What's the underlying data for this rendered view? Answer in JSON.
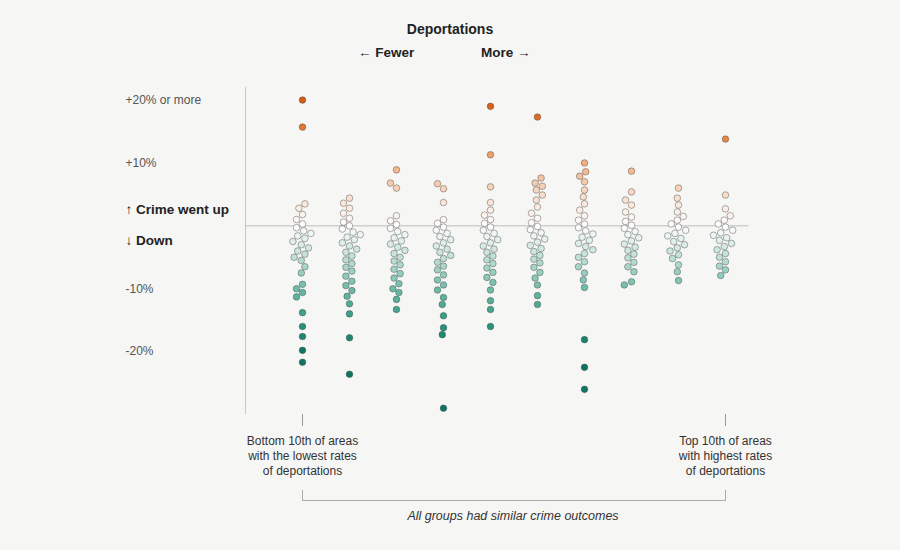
{
  "chart_data": {
    "type": "strip",
    "title": "Deportations",
    "direction_labels": [
      "← Fewer",
      "More →"
    ],
    "caption": "All groups had similar crime outcomes",
    "annotations": [
      {
        "text": "↑ Crime went up",
        "y": 0
      },
      {
        "text": "↓ Down",
        "y": 0
      }
    ],
    "categories": [
      "Bottom 10th of areas\nwith the lowest rates\nof deportations",
      null,
      null,
      null,
      null,
      null,
      null,
      null,
      null,
      "Top 10th of areas\nwith highest rates\nof deportations"
    ],
    "values": [
      [
        20,
        15.7,
        3.5,
        2.8,
        1.8,
        1,
        0.3,
        -0.3,
        -0.8,
        -1.2,
        -1.6,
        -2,
        -2.5,
        -3,
        -3.5,
        -4,
        -4.5,
        -5,
        -5.5,
        -6.5,
        -7.5,
        -9.3,
        -10,
        -10.6,
        -11.3,
        -13.8,
        -16,
        -17.6,
        -19.8,
        -21.7
      ],
      [
        4.4,
        3.6,
        2.8,
        2,
        1.2,
        0.6,
        0,
        -0.5,
        -1,
        -1.4,
        -1.8,
        -2.2,
        -2.7,
        -3.2,
        -3.7,
        -4.2,
        -4.8,
        -5.4,
        -6,
        -6.6,
        -7.2,
        -8,
        -8.8,
        -9.5,
        -10.3,
        -11.2,
        -12.4,
        -14,
        -17.8,
        -23.6
      ],
      [
        8.9,
        6.8,
        6,
        1.6,
        0.8,
        0.2,
        -0.4,
        -0.9,
        -1.4,
        -1.9,
        -2.4,
        -2.9,
        -3.4,
        -3.9,
        -4.4,
        -5,
        -5.6,
        -6.2,
        -6.9,
        -7.6,
        -8.3,
        -9.2,
        -10,
        -10.6,
        -11.7,
        -13.3
      ],
      [
        6.7,
        5.9,
        3.7,
        1,
        0.4,
        -0.2,
        -0.7,
        -1.2,
        -1.7,
        -2.2,
        -2.7,
        -3.2,
        -3.7,
        -4.2,
        -4.7,
        -5.2,
        -5.8,
        -6.4,
        -7,
        -7.8,
        -8.6,
        -9.4,
        -10.2,
        -11.4,
        -12.5,
        -14.3,
        -16.2,
        -17.3,
        -29
      ],
      [
        19,
        11.3,
        6.2,
        3.7,
        2.5,
        1.7,
        1,
        0.4,
        -0.2,
        -0.7,
        -1.2,
        -1.7,
        -2.2,
        -2.7,
        -3.2,
        -3.7,
        -4.2,
        -4.8,
        -5.4,
        -6,
        -6.7,
        -7.4,
        -8.2,
        -9,
        -10.2,
        -11.9,
        -13.3,
        -16
      ],
      [
        17.3,
        7.6,
        6.8,
        6.3,
        5.7,
        4.9,
        4.1,
        3,
        2,
        1.2,
        0.5,
        -0.1,
        -0.6,
        -1.1,
        -1.6,
        -2.1,
        -2.6,
        -3.1,
        -3.6,
        -4.1,
        -4.7,
        -5.3,
        -5.9,
        -6.6,
        -7.4,
        -8.3,
        -9.4,
        -11.1,
        -12.5
      ],
      [
        10,
        8.6,
        7.9,
        7,
        5.7,
        4.6,
        3.5,
        2.5,
        1.6,
        0.9,
        0.3,
        -0.3,
        -0.8,
        -1.3,
        -1.8,
        -2.3,
        -2.8,
        -3.3,
        -3.8,
        -4.4,
        -5,
        -5.7,
        -6.5,
        -7.5,
        -8.6,
        -9.8,
        -18.1,
        -22.5,
        -26
      ],
      [
        8.7,
        5.4,
        4.1,
        3.3,
        2.2,
        1.4,
        0.7,
        0.1,
        -0.4,
        -0.9,
        -1.4,
        -1.9,
        -2.4,
        -2.9,
        -3.4,
        -3.9,
        -4.5,
        -5.1,
        -5.8,
        -6.5,
        -7.3,
        -8.9,
        -9.4
      ],
      [
        6,
        4.4,
        3.3,
        2.2,
        1.5,
        0.9,
        0.3,
        -0.2,
        -0.7,
        -1.2,
        -1.6,
        -2,
        -2.5,
        -3,
        -3.5,
        -4,
        -4.6,
        -5.2,
        -6.2,
        -7.3,
        -8.7
      ],
      [
        13.8,
        4.9,
        2.7,
        1.6,
        0.9,
        0.3,
        -0.2,
        -0.7,
        -1.1,
        -1.5,
        -1.9,
        -2.3,
        -2.8,
        -3.3,
        -3.8,
        -4.4,
        -5,
        -5.7,
        -6.4,
        -7,
        -7.9
      ]
    ],
    "ylim": [
      -30,
      22
    ],
    "yticks": [
      {
        "value": 20,
        "label": "+20% or more"
      },
      {
        "value": 10,
        "label": "+10%"
      },
      {
        "value": -10,
        "label": "-10%"
      },
      {
        "value": -20,
        "label": "-20%"
      }
    ],
    "tick_labels": "x"
  }
}
